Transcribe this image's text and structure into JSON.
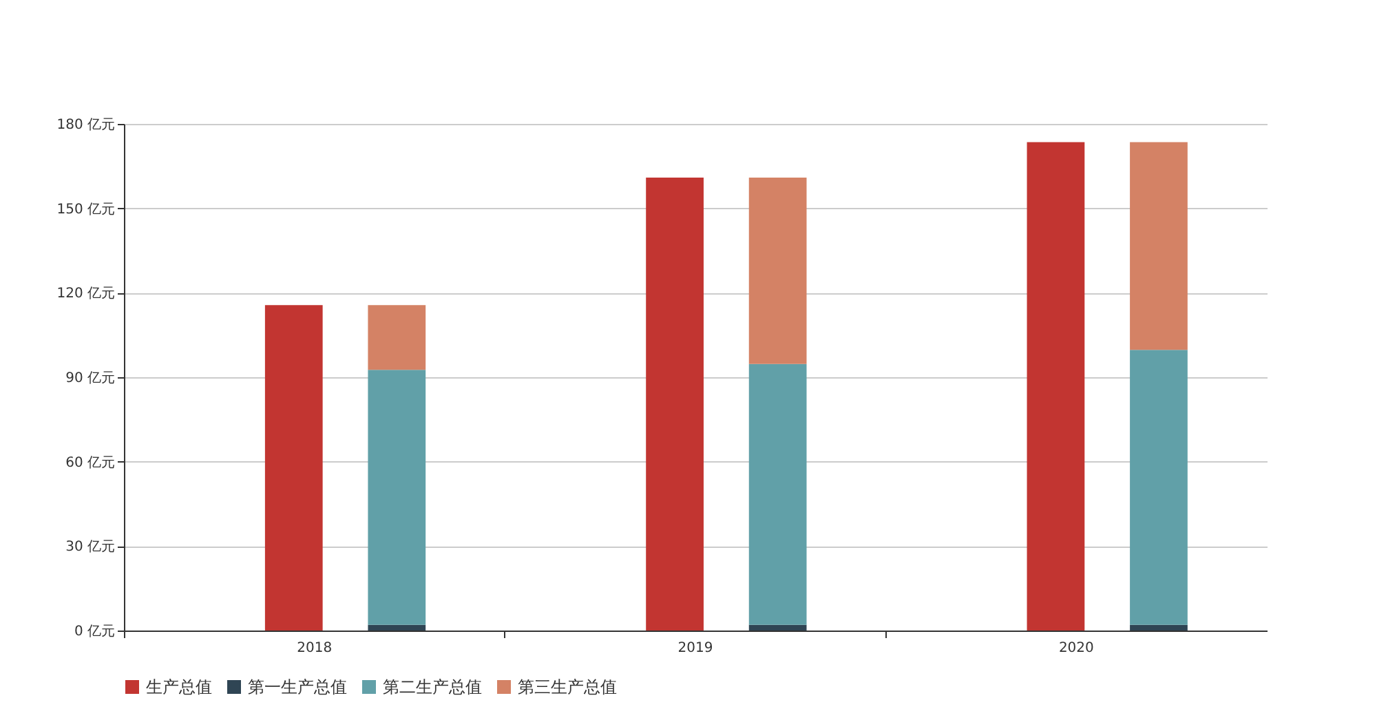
{
  "chart_data": {
    "type": "bar",
    "categories": [
      "2018",
      "2019",
      "2020"
    ],
    "series": [
      {
        "name": "生产总值",
        "color": "#c23531",
        "values": [
          115.6,
          160.9,
          173.5
        ]
      },
      {
        "name": "第一生产总值",
        "color": "#2f4554",
        "base": [
          0,
          0,
          0
        ],
        "values": [
          2.0,
          2.0,
          2.0
        ]
      },
      {
        "name": "第二生产总值",
        "color": "#61a0a8",
        "base": [
          2.0,
          2.0,
          2.0
        ],
        "values": [
          90.6,
          92.7,
          97.7
        ]
      },
      {
        "name": "第三生产总值",
        "color": "#d48265",
        "base": [
          92.6,
          94.7,
          99.7
        ],
        "values": [
          23.0,
          66.2,
          73.8
        ]
      }
    ],
    "ylim": [
      0,
      180
    ],
    "yticks": [
      {
        "value": 0,
        "label": "0 亿元"
      },
      {
        "value": 30,
        "label": "30 亿元"
      },
      {
        "value": 60,
        "label": "60 亿元"
      },
      {
        "value": 90,
        "label": "90 亿元"
      },
      {
        "value": 120,
        "label": "120 亿元"
      },
      {
        "value": 150,
        "label": "150 亿元"
      },
      {
        "value": 180,
        "label": "180 亿元"
      }
    ],
    "grid": "y",
    "legend": "bottom"
  }
}
